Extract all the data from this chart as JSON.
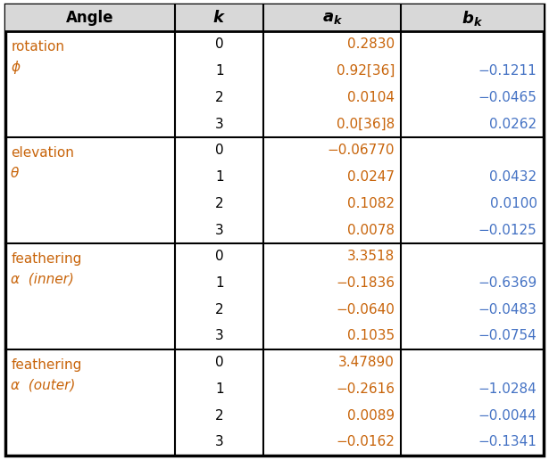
{
  "col_headers": [
    "Angle",
    "k",
    "a_k",
    "b_k"
  ],
  "sections": [
    {
      "angle_line1": "rotation",
      "angle_line2": "ϕ",
      "rows": [
        {
          "k": "0",
          "ak": "0.2830",
          "bk": ""
        },
        {
          "k": "1",
          "ak": "0.92[36]",
          "bk": "−0.1211"
        },
        {
          "k": "2",
          "ak": "0.0104",
          "bk": "−0.0465"
        },
        {
          "k": "3",
          "ak": "0.0[36]8",
          "bk": "0.0262"
        }
      ]
    },
    {
      "angle_line1": "elevation",
      "angle_line2": "θ",
      "rows": [
        {
          "k": "0",
          "ak": "−0.06770",
          "bk": ""
        },
        {
          "k": "1",
          "ak": "0.0247",
          "bk": "0.0432"
        },
        {
          "k": "2",
          "ak": "0.1082",
          "bk": "0.0100"
        },
        {
          "k": "3",
          "ak": "0.0078",
          "bk": "−0.0125"
        }
      ]
    },
    {
      "angle_line1": "feathering",
      "angle_line2": "α  (inner)",
      "rows": [
        {
          "k": "0",
          "ak": "3.3518",
          "bk": ""
        },
        {
          "k": "1",
          "ak": "−0.1836",
          "bk": "−0.6369"
        },
        {
          "k": "2",
          "ak": "−0.0640",
          "bk": "−0.0483"
        },
        {
          "k": "3",
          "ak": "0.1035",
          "bk": "−0.0754"
        }
      ]
    },
    {
      "angle_line1": "feathering",
      "angle_line2": "α  (outer)",
      "rows": [
        {
          "k": "0",
          "ak": "3.47890",
          "bk": ""
        },
        {
          "k": "1",
          "ak": "−0.2616",
          "bk": "−1.0284"
        },
        {
          "k": "2",
          "ak": "0.0089",
          "bk": "−0.0044"
        },
        {
          "k": "3",
          "ak": "−0.0162",
          "bk": "−0.1341"
        }
      ]
    }
  ],
  "header_color": "#000000",
  "angle_text_color": "#C8640A",
  "k_color": "#000000",
  "ak_color": "#C8640A",
  "bk_color": "#4472C4",
  "bg_color": "#FFFFFF",
  "border_color": "#000000",
  "header_bg": "#D8D8D8",
  "figwidth": 6.15,
  "figheight": 5.16,
  "dpi": 100
}
